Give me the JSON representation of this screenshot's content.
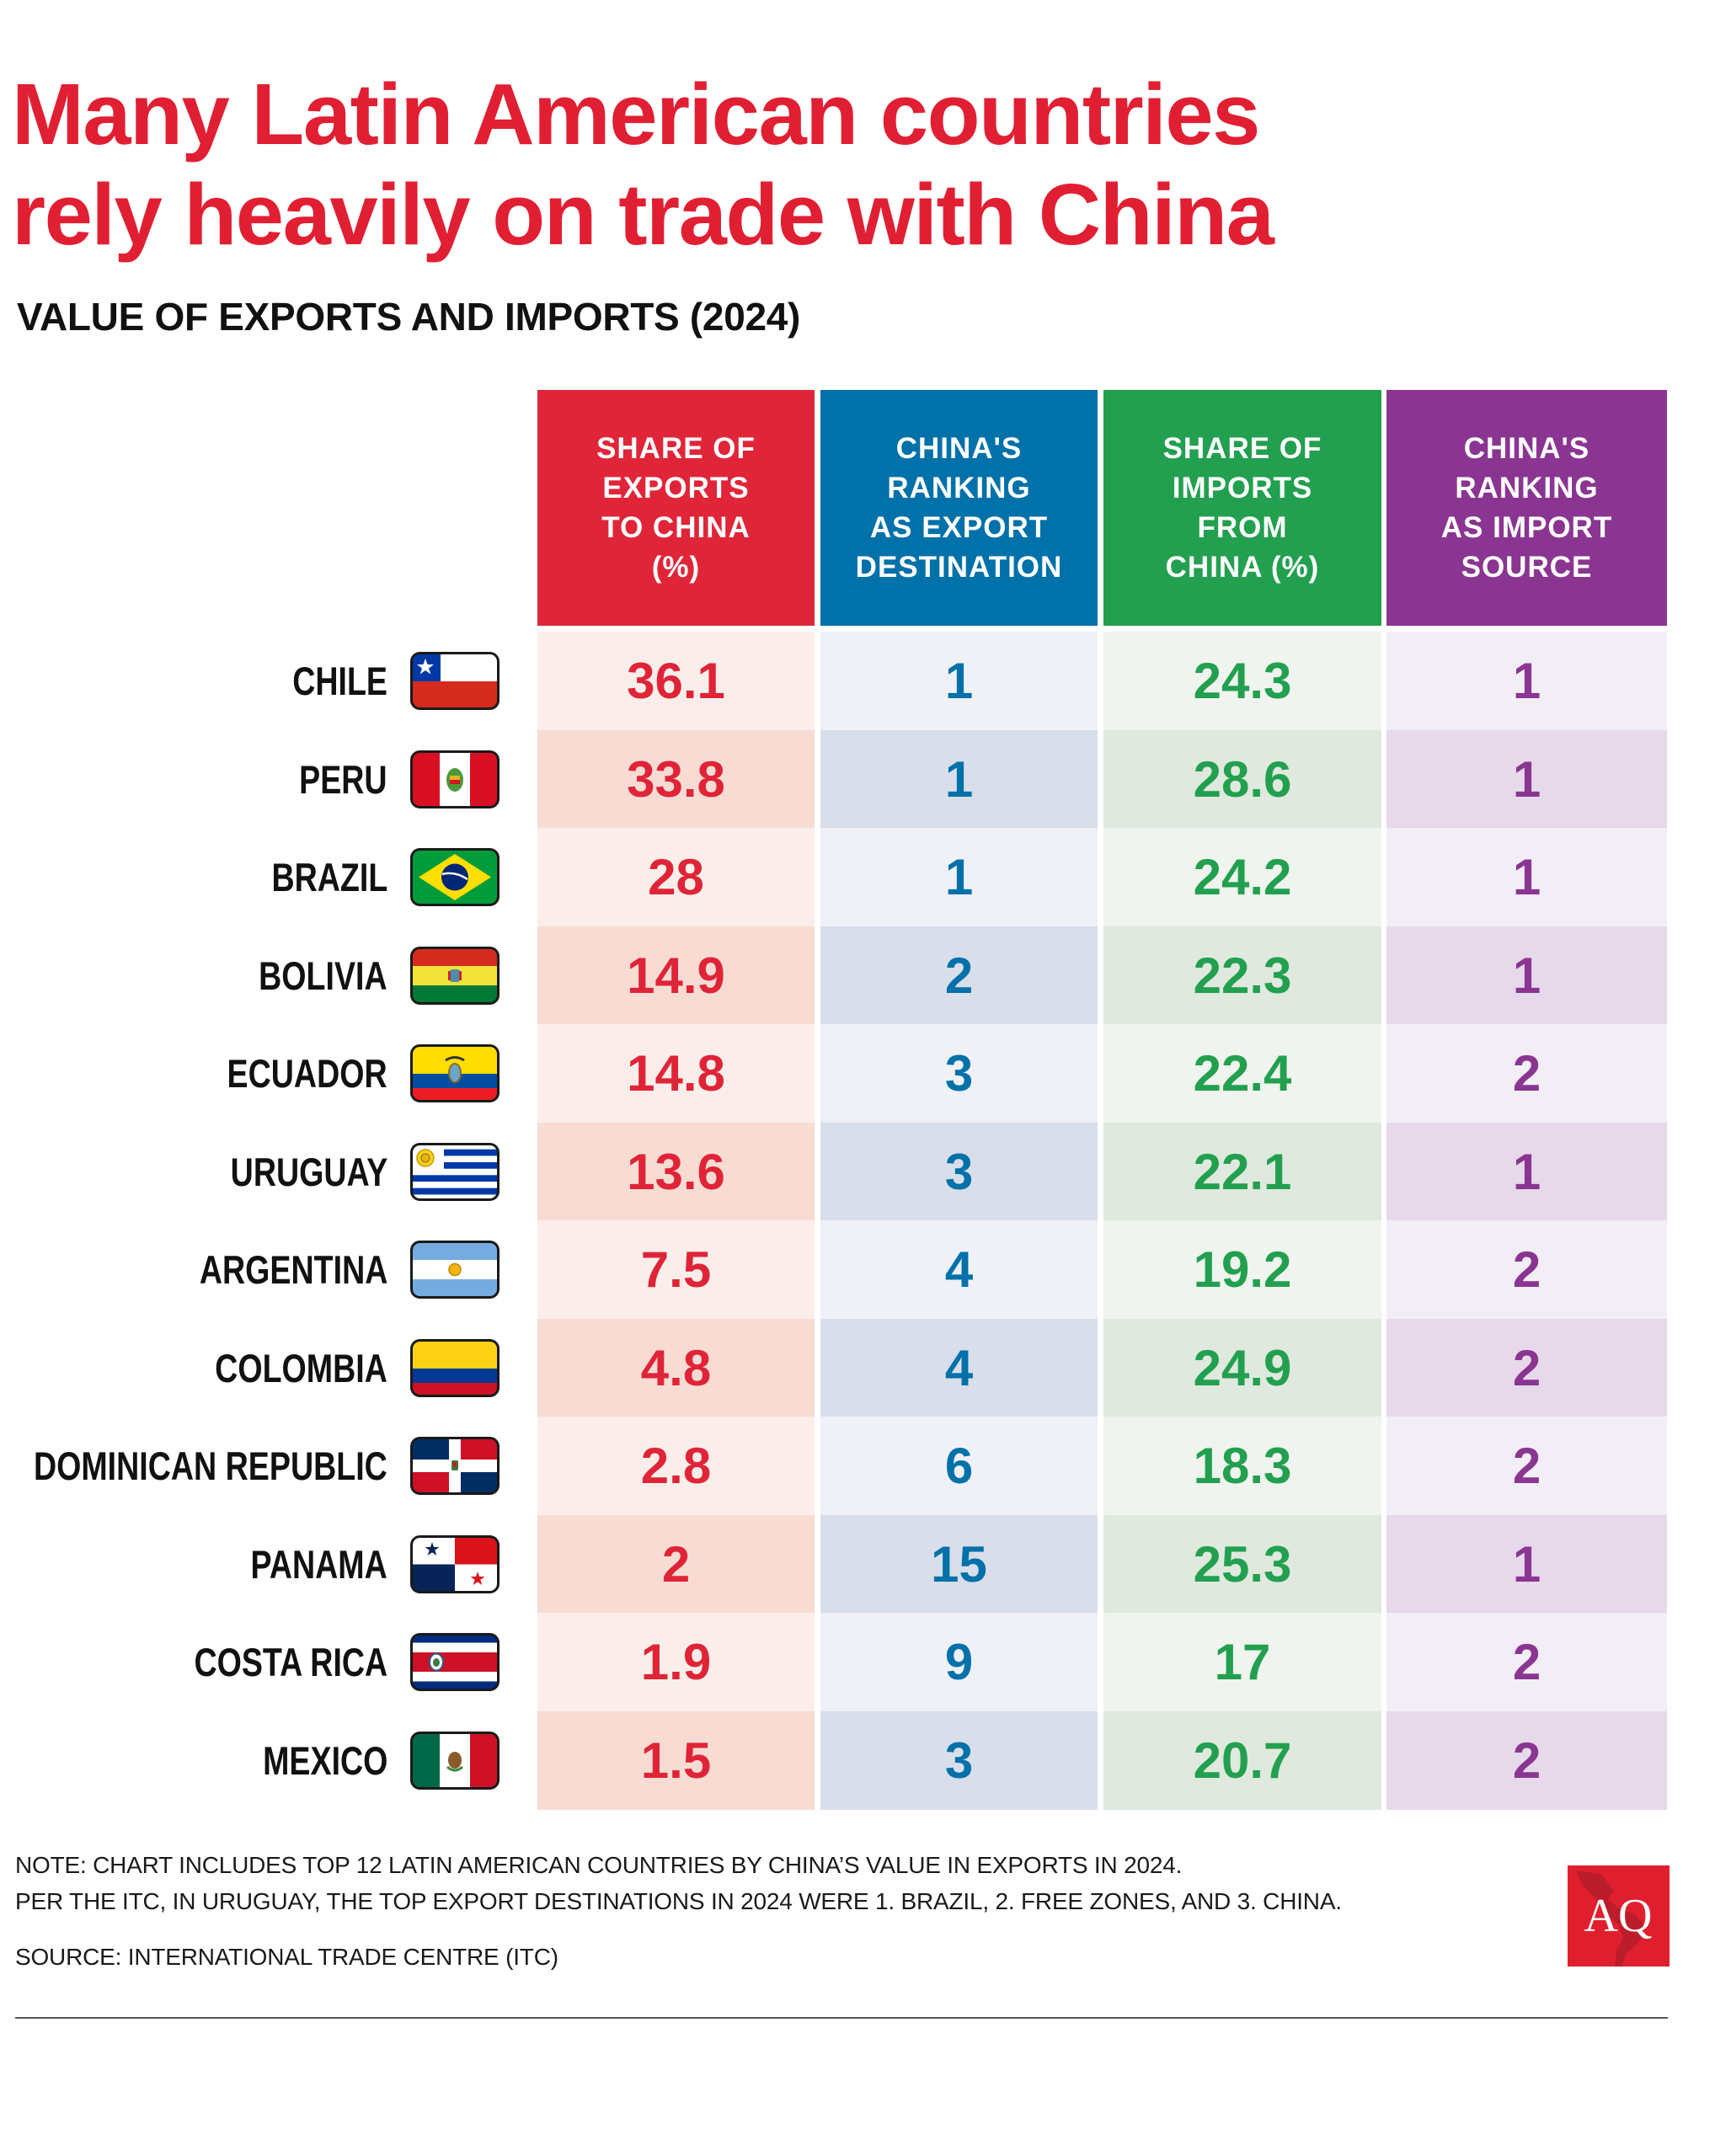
{
  "header": {
    "title_line1": "Many Latin American countries",
    "title_line2": "rely heavily on trade with China",
    "subtitle": "VALUE OF EXPORTS AND IMPORTS (2024)"
  },
  "colors": {
    "title": "#E11F33",
    "col1": "#E12538",
    "col2": "#0071A9",
    "col3": "#22A04F",
    "col4": "#8B3592"
  },
  "chart_data": {
    "type": "table",
    "title": "Many Latin American countries rely heavily on trade with China",
    "subtitle": "VALUE OF EXPORTS AND IMPORTS (2024)",
    "columns": [
      "SHARE OF\nEXPORTS\nTO CHINA\n(%)",
      "CHINA'S\nRANKING\nAS EXPORT\nDESTINATION",
      "SHARE OF\nIMPORTS\nFROM\nCHINA (%)",
      "CHINA'S\nRANKING\nAS IMPORT\nSOURCE"
    ],
    "rows": [
      {
        "country": "CHILE",
        "flag": "chile-flag-icon",
        "values": [
          "36.1",
          "1",
          "24.3",
          "1"
        ]
      },
      {
        "country": "PERU",
        "flag": "peru-flag-icon",
        "values": [
          "33.8",
          "1",
          "28.6",
          "1"
        ]
      },
      {
        "country": "BRAZIL",
        "flag": "brazil-flag-icon",
        "values": [
          "28",
          "1",
          "24.2",
          "1"
        ]
      },
      {
        "country": "BOLIVIA",
        "flag": "bolivia-flag-icon",
        "values": [
          "14.9",
          "2",
          "22.3",
          "1"
        ]
      },
      {
        "country": "ECUADOR",
        "flag": "ecuador-flag-icon",
        "values": [
          "14.8",
          "3",
          "22.4",
          "2"
        ]
      },
      {
        "country": "URUGUAY",
        "flag": "uruguay-flag-icon",
        "values": [
          "13.6",
          "3",
          "22.1",
          "1"
        ]
      },
      {
        "country": "ARGENTINA",
        "flag": "argentina-flag-icon",
        "values": [
          "7.5",
          "4",
          "19.2",
          "2"
        ]
      },
      {
        "country": "COLOMBIA",
        "flag": "colombia-flag-icon",
        "values": [
          "4.8",
          "4",
          "24.9",
          "2"
        ]
      },
      {
        "country": "DOMINICAN REPUBLIC",
        "flag": "dominican-republic-flag-icon",
        "values": [
          "2.8",
          "6",
          "18.3",
          "2"
        ]
      },
      {
        "country": "PANAMA",
        "flag": "panama-flag-icon",
        "values": [
          "2",
          "15",
          "25.3",
          "1"
        ]
      },
      {
        "country": "COSTA RICA",
        "flag": "costa-rica-flag-icon",
        "values": [
          "1.9",
          "9",
          "17",
          "2"
        ]
      },
      {
        "country": "MEXICO",
        "flag": "mexico-flag-icon",
        "values": [
          "1.5",
          "3",
          "20.7",
          "2"
        ]
      }
    ]
  },
  "footer": {
    "note1": "NOTE: CHART INCLUDES TOP 12 LATIN AMERICAN COUNTRIES BY CHINA’S VALUE IN EXPORTS IN 2024.",
    "note2": "PER THE ITC, IN URUGUAY, THE TOP EXPORT DESTINATIONS IN 2024 WERE 1. BRAZIL, 2. FREE ZONES, AND 3. CHINA.",
    "source": "SOURCE: INTERNATIONAL TRADE CENTRE (ITC)",
    "logo_text": "AQ"
  }
}
